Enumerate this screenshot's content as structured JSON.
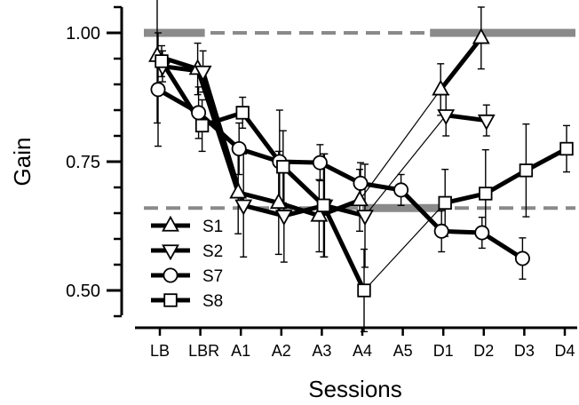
{
  "chart_data": {
    "type": "line",
    "xlabel": "Sessions",
    "ylabel": "Gain",
    "categories": [
      "LB",
      "LBR",
      "A1",
      "A2",
      "A3",
      "A4",
      "A5",
      "D1",
      "D2",
      "D3",
      "D4"
    ],
    "y_ticks": [
      0.5,
      0.75,
      1.0
    ],
    "y_tick_labels": [
      "0.50",
      "0.75",
      "1.00"
    ],
    "ylim": [
      0.45,
      1.05
    ],
    "legend_position": "bottom-left",
    "reference_lines": [
      {
        "style": "dashed",
        "y": 1.0,
        "from": "LB",
        "to": "D4",
        "solid_segments": [
          [
            "LB",
            "LBR"
          ],
          [
            "D1",
            "D4"
          ]
        ]
      },
      {
        "style": "dashed",
        "y": 0.66,
        "from": "LB",
        "to": "D4",
        "solid_segments": [
          [
            "A4",
            "D1"
          ]
        ]
      }
    ],
    "series": [
      {
        "name": "S1",
        "marker": "triangle-up",
        "points": [
          {
            "x": 0,
            "y": 0.955,
            "err": 0.13
          },
          {
            "x": 1,
            "y": 0.93,
            "err": 0.05
          },
          {
            "x": 2,
            "y": 0.69,
            "err": 0.08
          },
          {
            "x": 3,
            "y": 0.67,
            "err": 0.1
          },
          {
            "x": 4,
            "y": 0.645,
            "err": 0.07
          },
          {
            "x": 5,
            "y": 0.675,
            "err": 0.06
          },
          {
            "x": 7,
            "y": 0.89,
            "err": 0.05
          },
          {
            "x": 8,
            "y": 0.99,
            "err": 0.06
          }
        ],
        "segments": [
          {
            "from": 0,
            "to": 5,
            "width": 5
          },
          {
            "from": 5,
            "to": 6,
            "width": 1.2
          },
          {
            "from": 6,
            "to": 7,
            "width": 5
          }
        ]
      },
      {
        "name": "S2",
        "marker": "triangle-down",
        "points": [
          {
            "x": 0,
            "y": 0.935,
            "err": 0.03
          },
          {
            "x": 1,
            "y": 0.925,
            "err": 0.04
          },
          {
            "x": 2,
            "y": 0.665,
            "err": 0.1
          },
          {
            "x": 3,
            "y": 0.645,
            "err": 0.09
          },
          {
            "x": 4,
            "y": 0.665,
            "err": 0.1
          },
          {
            "x": 5,
            "y": 0.645,
            "err": 0.1
          },
          {
            "x": 7,
            "y": 0.84,
            "err": 0.04
          },
          {
            "x": 8,
            "y": 0.83,
            "err": 0.03
          }
        ],
        "segments": [
          {
            "from": 0,
            "to": 5,
            "width": 5
          },
          {
            "from": 5,
            "to": 6,
            "width": 1.2
          },
          {
            "from": 6,
            "to": 7,
            "width": 5
          }
        ]
      },
      {
        "name": "S7",
        "marker": "circle",
        "points": [
          {
            "x": 0,
            "y": 0.89,
            "err": 0.11
          },
          {
            "x": 1,
            "y": 0.845,
            "err": 0.05
          },
          {
            "x": 2,
            "y": 0.775,
            "err": 0.05
          },
          {
            "x": 3,
            "y": 0.75,
            "err": 0.1
          },
          {
            "x": 4,
            "y": 0.748,
            "err": 0.035
          },
          {
            "x": 5,
            "y": 0.708,
            "err": 0.04
          },
          {
            "x": 6,
            "y": 0.695,
            "err": 0.03
          },
          {
            "x": 7,
            "y": 0.615,
            "err": 0.04
          },
          {
            "x": 8,
            "y": 0.612,
            "err": 0.03
          },
          {
            "x": 9,
            "y": 0.562,
            "err": 0.04
          }
        ],
        "segments": [
          {
            "from": 0,
            "to": 9,
            "width": 5
          }
        ]
      },
      {
        "name": "S8",
        "marker": "square",
        "points": [
          {
            "x": 0,
            "y": 0.945,
            "err": 0.03
          },
          {
            "x": 1,
            "y": 0.82,
            "err": 0.05
          },
          {
            "x": 2,
            "y": 0.845,
            "err": 0.03
          },
          {
            "x": 3,
            "y": 0.74,
            "err": 0.07
          },
          {
            "x": 4,
            "y": 0.665,
            "err": 0.1
          },
          {
            "x": 5,
            "y": 0.5,
            "err": 0.08
          },
          {
            "x": 7,
            "y": 0.67,
            "err": 0.065
          },
          {
            "x": 8,
            "y": 0.688,
            "err": 0.085
          },
          {
            "x": 9,
            "y": 0.733,
            "err": 0.09
          },
          {
            "x": 10,
            "y": 0.775,
            "err": 0.045
          }
        ],
        "segments": [
          {
            "from": 0,
            "to": 5,
            "width": 5
          },
          {
            "from": 5,
            "to": 6,
            "width": 1.2
          },
          {
            "from": 6,
            "to": 9,
            "width": 5
          }
        ]
      }
    ]
  }
}
